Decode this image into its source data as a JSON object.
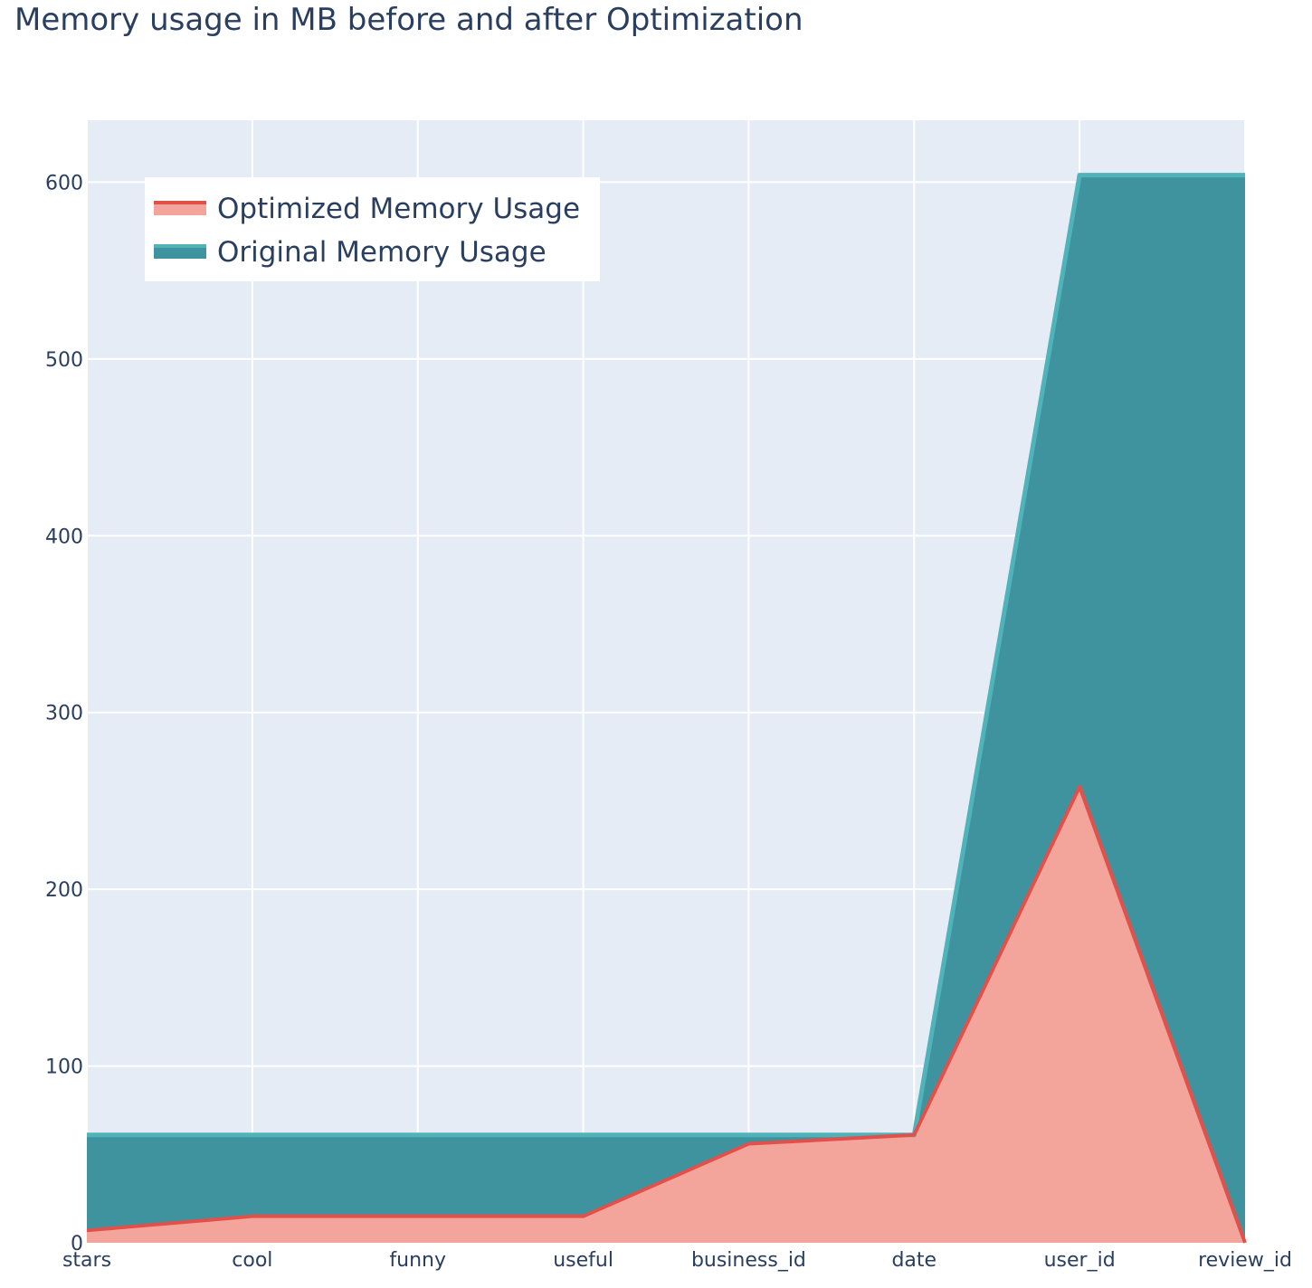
{
  "chart_data": {
    "type": "area",
    "title": "Memory usage in MB before and after Optimization",
    "xlabel": "",
    "ylabel": "",
    "categories": [
      "stars",
      "cool",
      "funny",
      "useful",
      "business_id",
      "date",
      "user_id",
      "review_id"
    ],
    "ylim": [
      0,
      635
    ],
    "yticks": [
      0,
      100,
      200,
      300,
      400,
      500,
      600
    ],
    "grid": true,
    "legend_position": "top-left",
    "series": [
      {
        "name": "Optimized Memory Usage",
        "values": [
          7,
          15,
          15,
          15,
          56,
          61,
          258,
          0
        ],
        "line_color": "#e1504a",
        "fill_color": "#f3a59b"
      },
      {
        "name": "Original Memory Usage",
        "values": [
          61,
          61,
          61,
          61,
          61,
          61,
          604,
          604
        ],
        "line_color": "#4fb3b9",
        "fill_color": "#3f939f"
      }
    ],
    "plot_background": "#e5ecf6"
  }
}
